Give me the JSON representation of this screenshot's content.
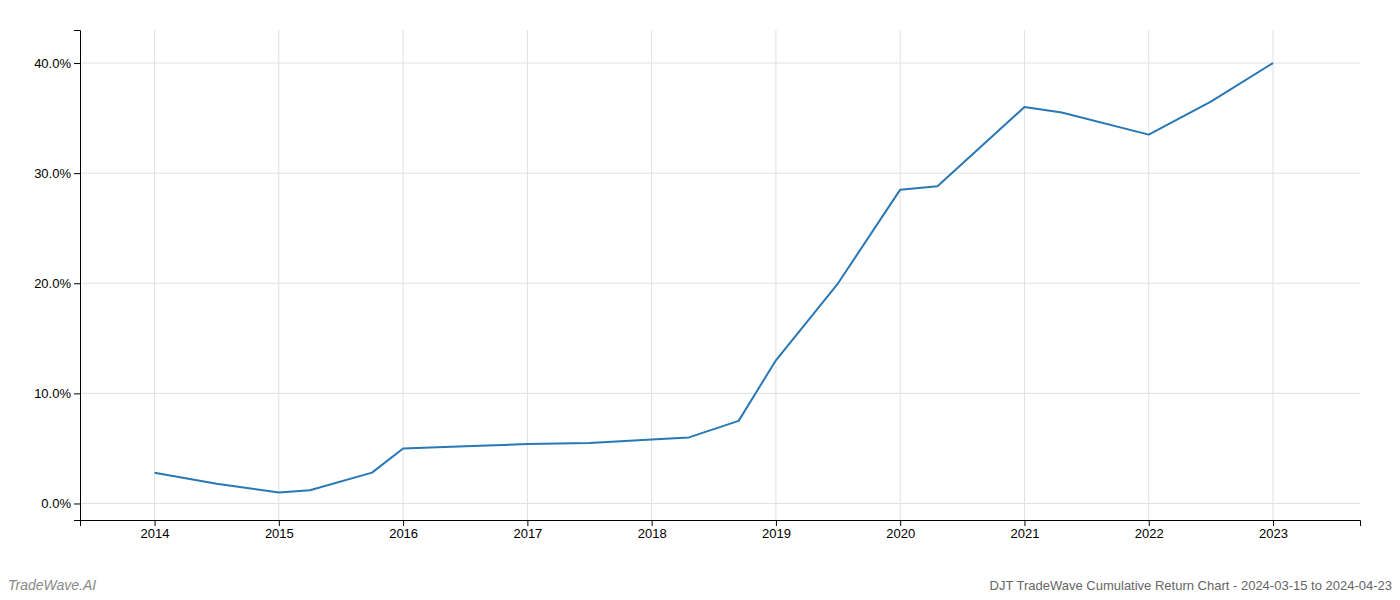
{
  "chart_data": {
    "type": "line",
    "title": "DJT TradeWave Cumulative Return Chart - 2024-03-15 to 2024-04-23",
    "annotations": [
      "TradeWave.AI"
    ],
    "x": [
      2014,
      2014.5,
      2015,
      2015.25,
      2015.75,
      2016,
      2016.5,
      2017,
      2017.5,
      2018,
      2018.3,
      2018.7,
      2019,
      2019.5,
      2020,
      2020.3,
      2021,
      2021.3,
      2022,
      2022.5,
      2023
    ],
    "values": [
      2.8,
      1.8,
      1.0,
      1.2,
      2.8,
      5.0,
      5.2,
      5.4,
      5.5,
      5.8,
      6.0,
      7.5,
      13.0,
      20.0,
      28.5,
      28.8,
      36.0,
      35.5,
      33.5,
      36.5,
      40.0
    ],
    "color": "#2878b5",
    "xlim": [
      2013.4,
      2023.7
    ],
    "xticks": [
      2014,
      2015,
      2016,
      2017,
      2018,
      2019,
      2020,
      2021,
      2022,
      2023
    ],
    "ylim": [
      -1.5,
      43
    ],
    "yticks": [
      {
        "value": 0,
        "label": "0.0%"
      },
      {
        "value": 10,
        "label": "10.0%"
      },
      {
        "value": 20,
        "label": "20.0%"
      },
      {
        "value": 30,
        "label": "30.0%"
      },
      {
        "value": 40,
        "label": "40.0%"
      }
    ],
    "grid": true
  }
}
